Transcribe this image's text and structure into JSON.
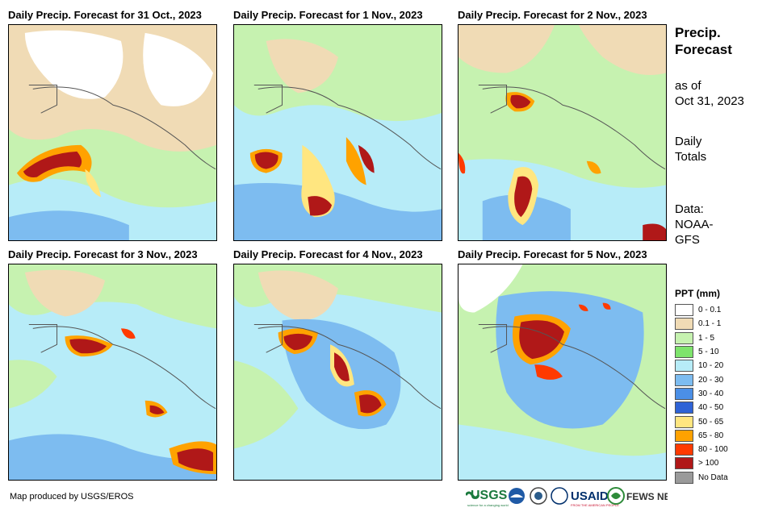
{
  "panels": [
    {
      "title": "Daily Precip. Forecast for 31 Oct., 2023"
    },
    {
      "title": "Daily Precip. Forecast for 1 Nov., 2023"
    },
    {
      "title": "Daily Precip. Forecast for 2 Nov., 2023"
    },
    {
      "title": "Daily Precip. Forecast for 3 Nov., 2023"
    },
    {
      "title": "Daily Precip. Forecast for 4 Nov., 2023"
    },
    {
      "title": "Daily Precip. Forecast for 5 Nov., 2023"
    }
  ],
  "sidebar": {
    "title_line1": "Precip.",
    "title_line2": "Forecast",
    "asof_line1": "as of",
    "asof_line2": "Oct 31, 2023",
    "totals_line1": "Daily",
    "totals_line2": "Totals",
    "data_line1": "Data:",
    "data_line2": "NOAA-",
    "data_line3": "GFS"
  },
  "legend": {
    "title": "PPT (mm)",
    "items": [
      {
        "label": "0 - 0.1",
        "color": "#ffffff"
      },
      {
        "label": "0.1 - 1",
        "color": "#f0dbb5"
      },
      {
        "label": "1 - 5",
        "color": "#c6f2b0"
      },
      {
        "label": "5 - 10",
        "color": "#7ee46c"
      },
      {
        "label": "10 - 20",
        "color": "#b7ecf8"
      },
      {
        "label": "20 - 30",
        "color": "#7dbcf0"
      },
      {
        "label": "30 - 40",
        "color": "#4b8fe6"
      },
      {
        "label": "40 - 50",
        "color": "#2f63d6"
      },
      {
        "label": "50 - 65",
        "color": "#ffe680"
      },
      {
        "label": "65 - 80",
        "color": "#ffa200"
      },
      {
        "label": "80 - 100",
        "color": "#ff3a00"
      },
      {
        "label": "> 100",
        "color": "#b01818"
      },
      {
        "label": "No Data",
        "color": "#9a9a9a"
      }
    ]
  },
  "credit": "Map produced by USGS/EROS",
  "logos": {
    "usgs": "USGS",
    "usgs_tagline": "science for a changing world",
    "usaid": "USAID",
    "usaid_tagline": "FROM THE AMERICAN PEOPLE",
    "fewsnet": "FEWS NET"
  }
}
